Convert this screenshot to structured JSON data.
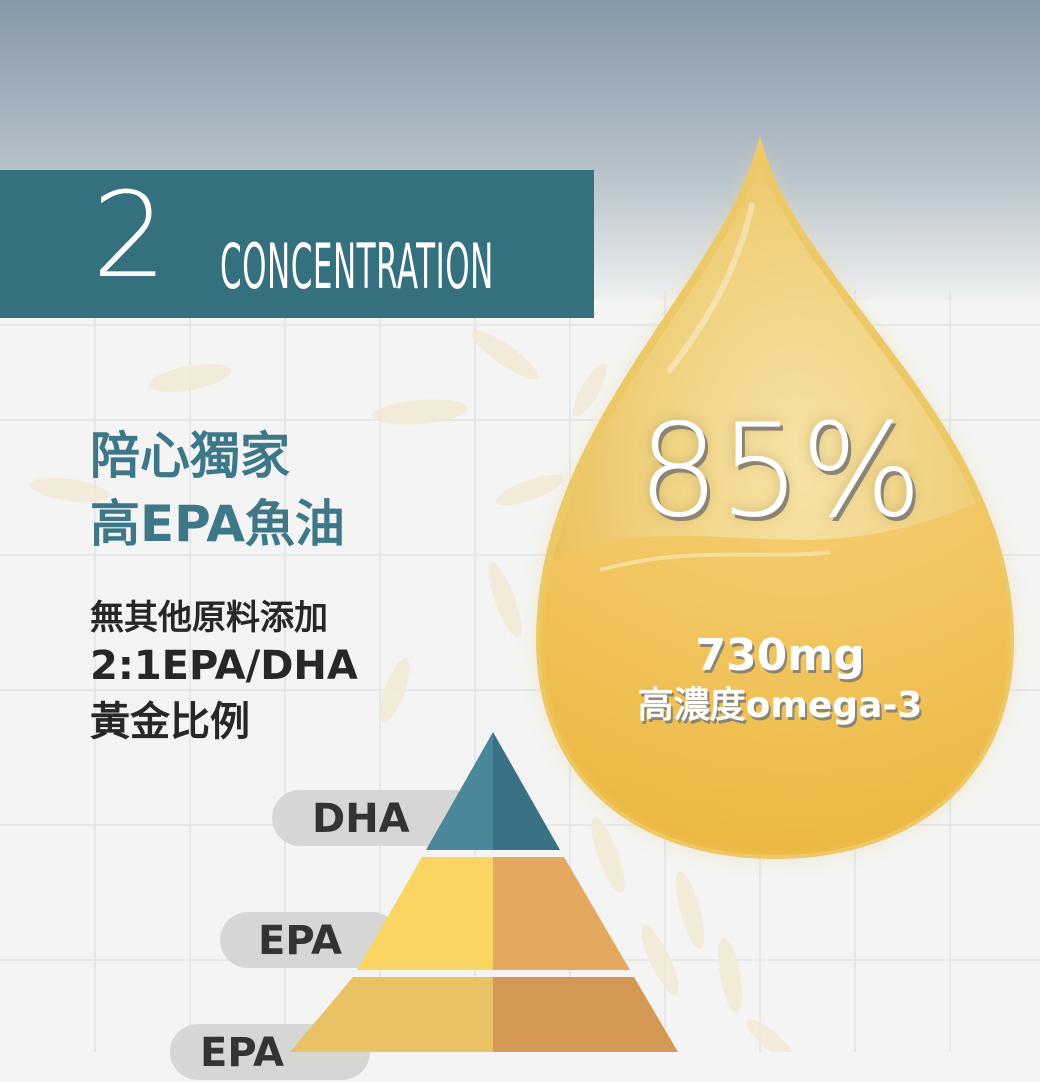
{
  "title": {
    "number": "2",
    "word": "CONCENTRATION"
  },
  "headline": {
    "line1": "陪心獨家",
    "line2": "高EPA魚油"
  },
  "features": {
    "line1": "無其他原料添加",
    "line2": "2:1EPA/DHA",
    "line3": "黃金比例"
  },
  "drop": {
    "percent": "85%",
    "amount": "730mg",
    "amount_desc": "高濃度omega-3"
  },
  "pyramid": {
    "labels": [
      "DHA",
      "EPA",
      "EPA"
    ]
  },
  "colors": {
    "title_band": "#35707f",
    "headline": "#3e7788",
    "drop_gold": "#edb73c",
    "pyramid_top": "#3f7a8c",
    "pyramid_mid": "#fad563",
    "pyramid_bottom": "#e6b46a"
  }
}
